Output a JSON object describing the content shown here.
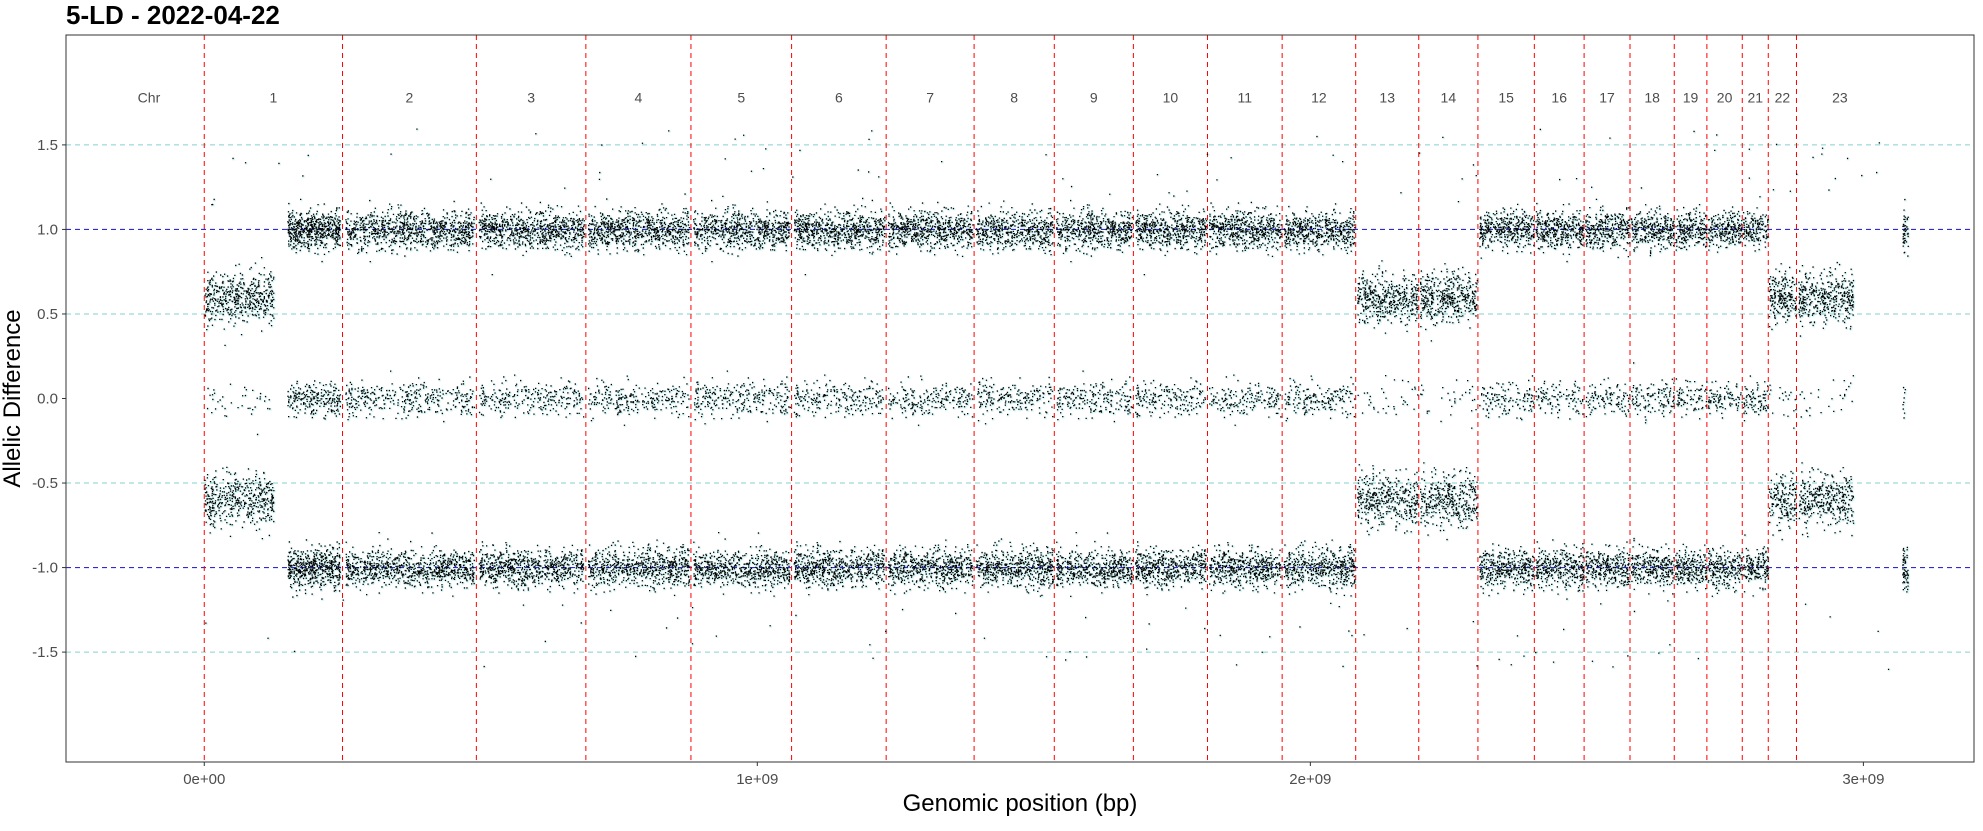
{
  "title": "5-LD - 2022-04-22",
  "chart_data": {
    "type": "scatter",
    "title": "5-LD - 2022-04-22",
    "xlabel": "Genomic position (bp)",
    "ylabel": "Allelic Difference",
    "xlim": [
      -250000000,
      3200000000
    ],
    "ylim": [
      -2.15,
      2.15
    ],
    "x_ticks": [
      0,
      1000000000,
      2000000000,
      3000000000
    ],
    "x_tick_labels": [
      "0e+00",
      "1e+09",
      "2e+09",
      "3e+09"
    ],
    "y_ticks": [
      -1.5,
      -1.0,
      -0.5,
      0.0,
      0.5,
      1.0,
      1.5
    ],
    "y_tick_labels": [
      "-1.5",
      "-1.0",
      "-0.5",
      "0.0",
      "0.5",
      "1.0",
      "1.5"
    ],
    "reference_lines_blue": [
      -1.0,
      1.0
    ],
    "reference_lines_cyan": [
      -1.5,
      -0.5,
      0.5,
      1.5
    ],
    "chromosome_header_label": "Chr",
    "chromosomes": [
      {
        "name": "1",
        "start": 0,
        "end": 250000000,
        "band": 0.6
      },
      {
        "name": "2",
        "start": 250000000,
        "end": 492000000,
        "band": 1.0
      },
      {
        "name": "3",
        "start": 492000000,
        "end": 690000000,
        "band": 1.0
      },
      {
        "name": "4",
        "start": 690000000,
        "end": 880000000,
        "band": 1.0
      },
      {
        "name": "5",
        "start": 880000000,
        "end": 1062000000,
        "band": 1.0
      },
      {
        "name": "6",
        "start": 1062000000,
        "end": 1233000000,
        "band": 1.0
      },
      {
        "name": "7",
        "start": 1233000000,
        "end": 1392000000,
        "band": 1.0
      },
      {
        "name": "8",
        "start": 1392000000,
        "end": 1537000000,
        "band": 1.0
      },
      {
        "name": "9",
        "start": 1537000000,
        "end": 1680000000,
        "band": 1.0
      },
      {
        "name": "10",
        "start": 1680000000,
        "end": 1814000000,
        "band": 1.0
      },
      {
        "name": "11",
        "start": 1814000000,
        "end": 1949000000,
        "band": 1.0
      },
      {
        "name": "12",
        "start": 1949000000,
        "end": 2082000000,
        "band": 1.0
      },
      {
        "name": "13",
        "start": 2082000000,
        "end": 2196000000,
        "band": 0.6
      },
      {
        "name": "14",
        "start": 2196000000,
        "end": 2303000000,
        "band": 0.6
      },
      {
        "name": "15",
        "start": 2303000000,
        "end": 2405000000,
        "band": 1.0
      },
      {
        "name": "16",
        "start": 2405000000,
        "end": 2495000000,
        "band": 1.0
      },
      {
        "name": "17",
        "start": 2495000000,
        "end": 2578000000,
        "band": 1.0
      },
      {
        "name": "18",
        "start": 2578000000,
        "end": 2658000000,
        "band": 1.0
      },
      {
        "name": "19",
        "start": 2658000000,
        "end": 2717000000,
        "band": 1.0
      },
      {
        "name": "20",
        "start": 2717000000,
        "end": 2781000000,
        "band": 1.0
      },
      {
        "name": "21",
        "start": 2781000000,
        "end": 2828000000,
        "band": 1.0
      },
      {
        "name": "22",
        "start": 2828000000,
        "end": 2879000000,
        "band": 0.6
      },
      {
        "name": "23",
        "start": 2879000000,
        "end": 3036000000,
        "band": 0.6
      }
    ],
    "description_note": "",
    "colors": {
      "points": "#000000",
      "points_halo": "#d9f7f7",
      "chromosome_boundary": "#ff0000",
      "ref_blue": "#2b2bd9",
      "ref_cyan": "#86cfcf",
      "panel_border": "#333333"
    }
  }
}
